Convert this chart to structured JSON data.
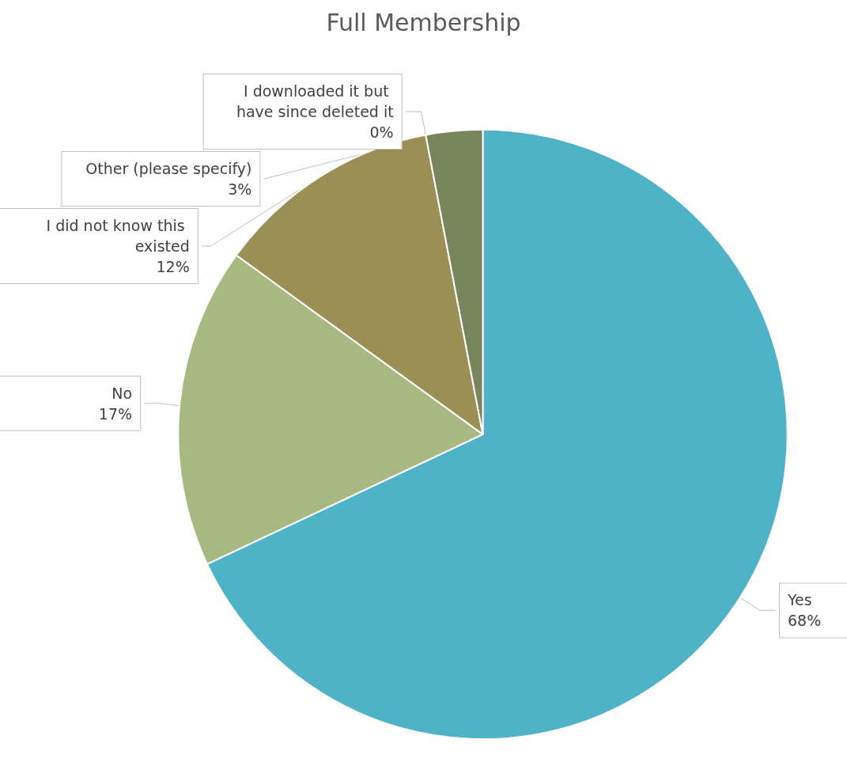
{
  "chart_data": {
    "type": "pie",
    "title": "Full Membership",
    "categories": [
      "Yes",
      "No",
      "I did not know this existed",
      "I downloaded it but have since deleted it",
      "Other (please specify)"
    ],
    "values": [
      68,
      17,
      12,
      0,
      3
    ],
    "value_labels": [
      "68%",
      "17%",
      "12%",
      "0%",
      "3%"
    ],
    "colors": [
      "#4fb3c8",
      "#a7b880",
      "#9c8f55",
      "#8c8c5c",
      "#78845b"
    ],
    "legend": false
  }
}
